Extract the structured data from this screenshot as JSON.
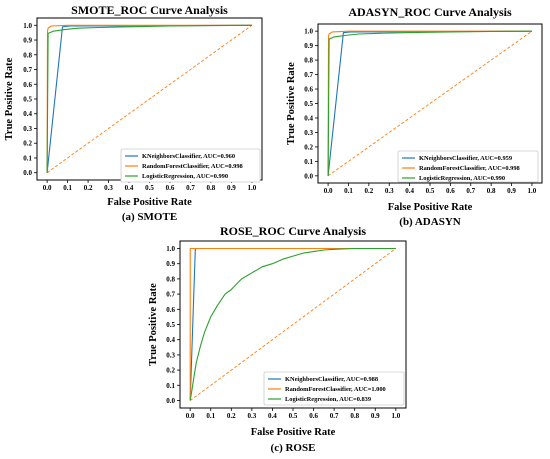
{
  "chart_data": [
    {
      "type": "line",
      "title": "SMOTE_ROC Curve Analysis",
      "xlabel": "False Positive Rate",
      "ylabel": "True Positive Rate",
      "caption": "(a) SMOTE",
      "xlim": [
        0,
        1
      ],
      "ylim": [
        0,
        1
      ],
      "xticks": [
        "0.0",
        "0.1",
        "0.2",
        "0.3",
        "0.4",
        "0.5",
        "0.6",
        "0.7",
        "0.8",
        "0.9",
        "1.0"
      ],
      "yticks": [
        "0.0",
        "0.1",
        "0.2",
        "0.3",
        "0.4",
        "0.5",
        "0.6",
        "0.7",
        "0.8",
        "0.9",
        "1.0"
      ],
      "legend_position": "lower-right",
      "series": [
        {
          "name": "KNeighborsClassifier, AUC=0.960",
          "color": "#1f77b4",
          "x": [
            0,
            0.075,
            0.11,
            1.0
          ],
          "y": [
            0,
            0.99,
            0.995,
            1.0
          ]
        },
        {
          "name": "RandomForestClassifier, AUC=0.998",
          "color": "#ff7f0e",
          "x": [
            0,
            0.002,
            0.005,
            0.02,
            0.1,
            1.0
          ],
          "y": [
            0,
            0.96,
            0.98,
            0.995,
            1.0,
            1.0
          ]
        },
        {
          "name": "LogisticRegression, AUC=0.990",
          "color": "#2ca02c",
          "x": [
            0,
            0.005,
            0.03,
            0.08,
            0.15,
            0.25,
            0.4,
            0.6,
            0.8,
            1.0
          ],
          "y": [
            0,
            0.945,
            0.96,
            0.97,
            0.98,
            0.985,
            0.99,
            0.995,
            0.998,
            1.0
          ]
        },
        {
          "name": "",
          "color": "#ff7f0e",
          "dashed": true,
          "x": [
            0,
            1
          ],
          "y": [
            0,
            1
          ]
        }
      ]
    },
    {
      "type": "line",
      "title": "ADASYN_ROC Curve Analysis",
      "xlabel": "False Positive Rate",
      "ylabel": "True Positive Rate",
      "caption": "(b) ADASYN",
      "xlim": [
        0,
        1
      ],
      "ylim": [
        0,
        1
      ],
      "xticks": [
        "0.0",
        "0.1",
        "0.2",
        "0.3",
        "0.4",
        "0.5",
        "0.6",
        "0.7",
        "0.8",
        "0.9",
        "1.0"
      ],
      "yticks": [
        "0.0",
        "0.1",
        "0.2",
        "0.3",
        "0.4",
        "0.5",
        "0.6",
        "0.7",
        "0.8",
        "0.9",
        "1.0"
      ],
      "legend_position": "lower-right",
      "series": [
        {
          "name": "KNeighborsClassifier, AUC=0.959",
          "color": "#1f77b4",
          "x": [
            0,
            0.075,
            0.11,
            1.0
          ],
          "y": [
            0,
            0.99,
            0.995,
            1.0
          ]
        },
        {
          "name": "RandomForestClassifier, AUC=0.998",
          "color": "#ff7f0e",
          "x": [
            0,
            0.002,
            0.005,
            0.02,
            0.1,
            1.0
          ],
          "y": [
            0,
            0.96,
            0.98,
            0.995,
            1.0,
            1.0
          ]
        },
        {
          "name": "LogisticRegression, AUC=0.990",
          "color": "#2ca02c",
          "x": [
            0,
            0.005,
            0.03,
            0.08,
            0.15,
            0.25,
            0.4,
            0.6,
            0.8,
            1.0
          ],
          "y": [
            0,
            0.945,
            0.96,
            0.97,
            0.98,
            0.985,
            0.99,
            0.995,
            0.998,
            1.0
          ]
        },
        {
          "name": "",
          "color": "#ff7f0e",
          "dashed": true,
          "x": [
            0,
            1
          ],
          "y": [
            0,
            1
          ]
        }
      ]
    },
    {
      "type": "line",
      "title": "ROSE_ROC Curve Analysis",
      "xlabel": "False Positive Rate",
      "ylabel": "True Positive Rate",
      "caption": "(c) ROSE",
      "xlim": [
        0,
        1
      ],
      "ylim": [
        0,
        1
      ],
      "xticks": [
        "0.0",
        "0.1",
        "0.2",
        "0.3",
        "0.4",
        "0.5",
        "0.6",
        "0.7",
        "0.8",
        "0.9",
        "1.0"
      ],
      "yticks": [
        "0.0",
        "0.1",
        "0.2",
        "0.3",
        "0.4",
        "0.5",
        "0.6",
        "0.7",
        "0.8",
        "0.9",
        "1.0"
      ],
      "legend_position": "lower-right",
      "series": [
        {
          "name": "KNeighborsClassifier, AUC=0.988",
          "color": "#1f77b4",
          "x": [
            0,
            0.025,
            0.03,
            1.0
          ],
          "y": [
            0,
            0.995,
            1.0,
            1.0
          ]
        },
        {
          "name": "RandomForestClassifier, AUC=1.000",
          "color": "#ff7f0e",
          "x": [
            0,
            0.0,
            0.01,
            1.0
          ],
          "y": [
            0,
            1.0,
            1.0,
            1.0
          ]
        },
        {
          "name": "LogisticRegression, AUC=0.839",
          "color": "#2ca02c",
          "x": [
            0,
            0.01,
            0.02,
            0.03,
            0.05,
            0.07,
            0.1,
            0.13,
            0.17,
            0.2,
            0.25,
            0.3,
            0.35,
            0.4,
            0.45,
            0.5,
            0.55,
            0.6,
            0.65,
            0.7,
            0.8,
            0.9,
            1.0
          ],
          "y": [
            0,
            0.08,
            0.17,
            0.25,
            0.36,
            0.45,
            0.55,
            0.62,
            0.7,
            0.73,
            0.8,
            0.84,
            0.88,
            0.9,
            0.93,
            0.95,
            0.97,
            0.98,
            0.99,
            0.995,
            1.0,
            1.0,
            1.0
          ]
        },
        {
          "name": "",
          "color": "#ff7f0e",
          "dashed": true,
          "x": [
            0,
            1
          ],
          "y": [
            0,
            1
          ]
        }
      ]
    }
  ]
}
